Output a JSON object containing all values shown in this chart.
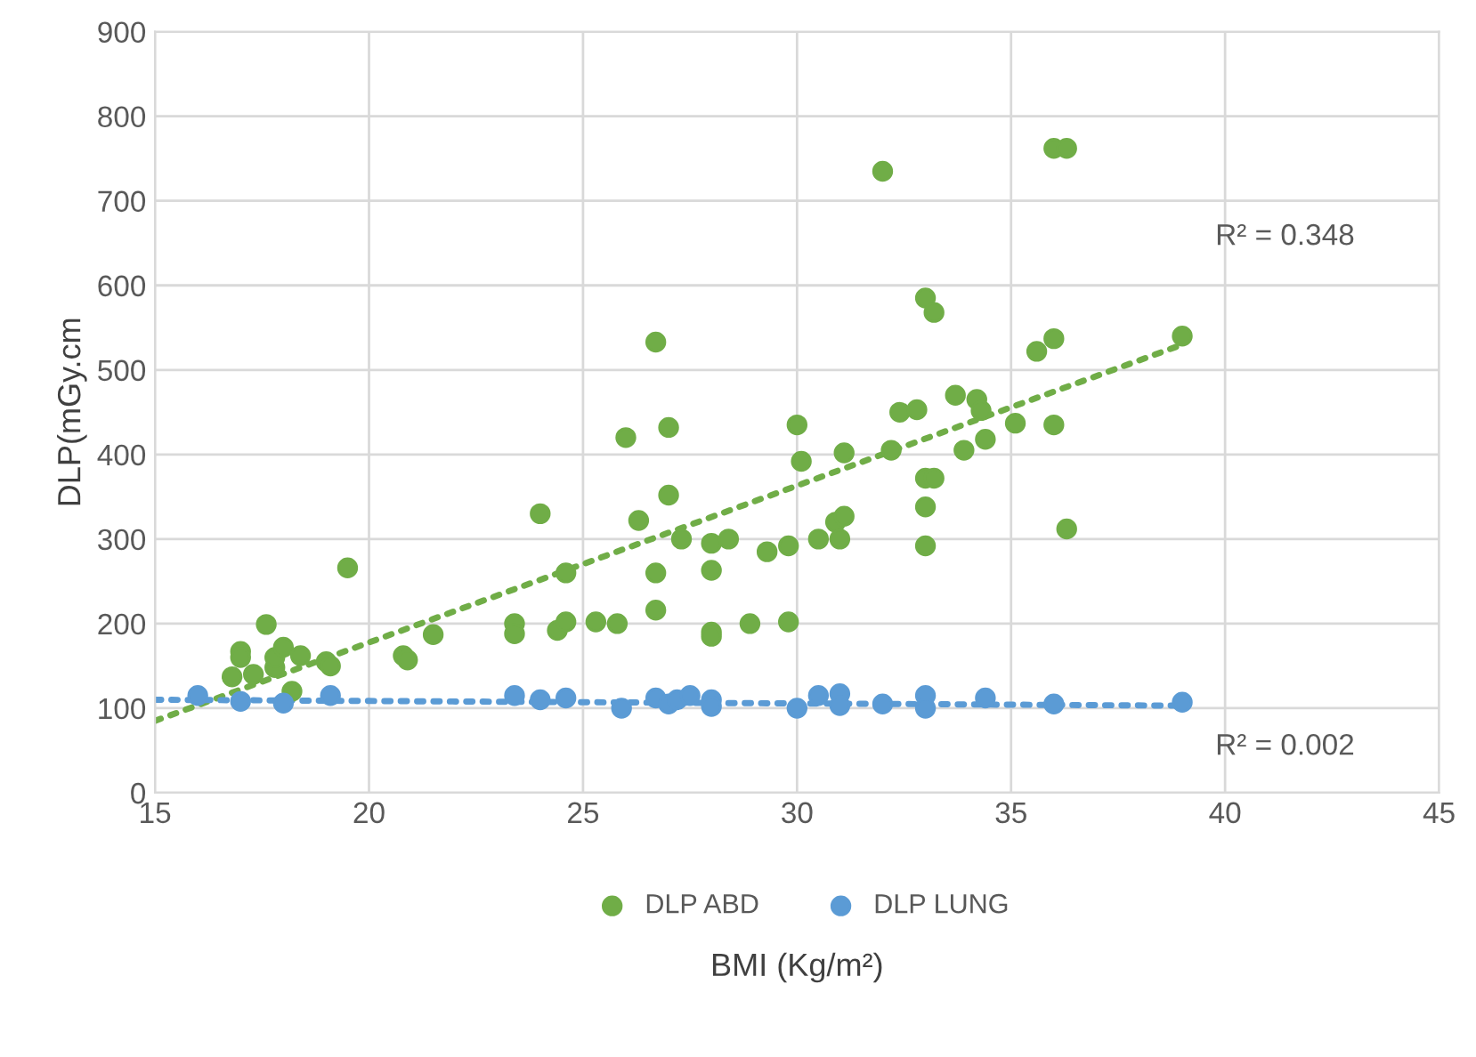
{
  "chart_data": {
    "type": "scatter",
    "xlabel": "BMI (Kg/m²)",
    "ylabel": "DLP(mGy.cm",
    "xlim": [
      15,
      45
    ],
    "xticks": [
      15,
      20,
      25,
      30,
      35,
      40,
      45
    ],
    "ylim": [
      0,
      900
    ],
    "yticks": [
      0,
      100,
      200,
      300,
      400,
      500,
      600,
      700,
      800,
      900
    ],
    "grid": true,
    "legend": "bottom",
    "annotations": [
      "R² = 0.348",
      "R² = 0.002"
    ],
    "series": [
      {
        "name": "DLP ABD",
        "color": "#70ad47",
        "marker": "circle",
        "x": [
          16.8,
          17,
          17,
          17.3,
          17.6,
          17.8,
          17.8,
          18,
          18.2,
          18.4,
          19,
          19.1,
          19.5,
          20.8,
          20.9,
          21.5,
          23.4,
          23.4,
          24,
          24.4,
          24.6,
          24.6,
          25.3,
          25.8,
          26,
          26.3,
          26.7,
          26.7,
          26.7,
          27,
          27,
          27.3,
          28,
          28,
          28,
          28,
          28.4,
          28.9,
          29.3,
          29.8,
          29.8,
          30,
          30.1,
          30.5,
          30.9,
          31,
          31.1,
          31.1,
          32,
          32.2,
          32.4,
          32.8,
          33,
          33,
          33,
          33,
          33.2,
          33.2,
          33.7,
          33.9,
          34.2,
          34.3,
          34.4,
          35.1,
          35.6,
          36,
          36,
          36,
          36.3,
          36.3,
          39
        ],
        "values": [
          137,
          167,
          160,
          140,
          199,
          148,
          160,
          172,
          120,
          162,
          155,
          150,
          266,
          162,
          157,
          187,
          200,
          188,
          330,
          192,
          260,
          202,
          202,
          200,
          420,
          322,
          533,
          260,
          216,
          432,
          352,
          300,
          295,
          263,
          190,
          185,
          300,
          200,
          285,
          292,
          202,
          435,
          392,
          300,
          320,
          300,
          402,
          327,
          735,
          405,
          450,
          453,
          585,
          372,
          338,
          292,
          568,
          372,
          470,
          405,
          465,
          452,
          418,
          437,
          522,
          762,
          537,
          435,
          762,
          312,
          540
        ]
      },
      {
        "name": "DLP LUNG",
        "color": "#5b9bd5",
        "marker": "circle",
        "x": [
          16,
          17,
          18,
          19.1,
          23.4,
          24,
          24.6,
          25.9,
          26.7,
          27,
          27.2,
          27.5,
          28,
          28,
          30,
          30.5,
          31,
          31,
          32,
          33,
          33,
          34.4,
          36,
          39
        ],
        "values": [
          115,
          108,
          106,
          115,
          115,
          110,
          112,
          100,
          112,
          105,
          110,
          115,
          110,
          102,
          100,
          115,
          117,
          103,
          105,
          115,
          100,
          112,
          105,
          107
        ]
      },
      {
        "type": "line",
        "color": "#70ad47",
        "line_style": "dotted",
        "x": [
          15,
          39
        ],
        "values": [
          85,
          530
        ]
      },
      {
        "type": "line",
        "color": "#5b9bd5",
        "line_style": "dotted",
        "x": [
          15,
          39
        ],
        "values": [
          110,
          103
        ]
      }
    ]
  }
}
